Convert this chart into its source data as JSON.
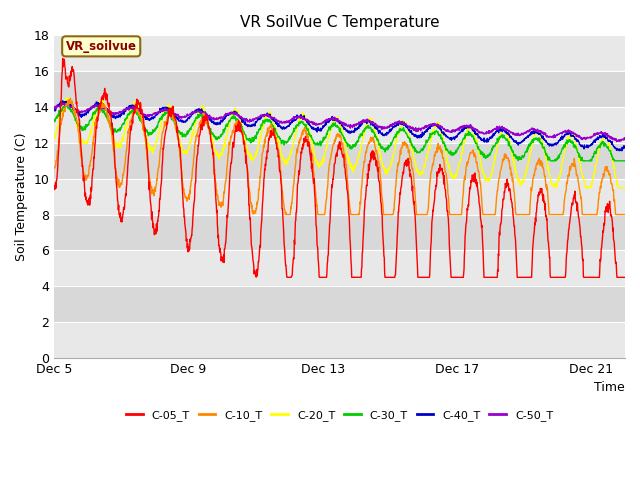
{
  "title": "VR SoilVue C Temperature",
  "ylabel": "Soil Temperature (C)",
  "xlabel": "Time",
  "annotation": "VR_soilvue",
  "ylim": [
    0,
    18
  ],
  "yticks": [
    0,
    2,
    4,
    6,
    8,
    10,
    12,
    14,
    16,
    18
  ],
  "xtick_labels": [
    "Dec 5",
    "Dec 9",
    "Dec 13",
    "Dec 17",
    "Dec 21"
  ],
  "xtick_positions": [
    0,
    4,
    8,
    12,
    16
  ],
  "series_colors": {
    "C-05_T": "#ff0000",
    "C-10_T": "#ff8800",
    "C-20_T": "#ffff00",
    "C-30_T": "#00cc00",
    "C-40_T": "#0000cc",
    "C-50_T": "#9900cc"
  },
  "plot_bg_color": "#e8e8e8",
  "band_colors": [
    "#e8e8e8",
    "#d8d8d8"
  ],
  "title_fontsize": 11,
  "axis_label_fontsize": 9,
  "tick_fontsize": 9
}
